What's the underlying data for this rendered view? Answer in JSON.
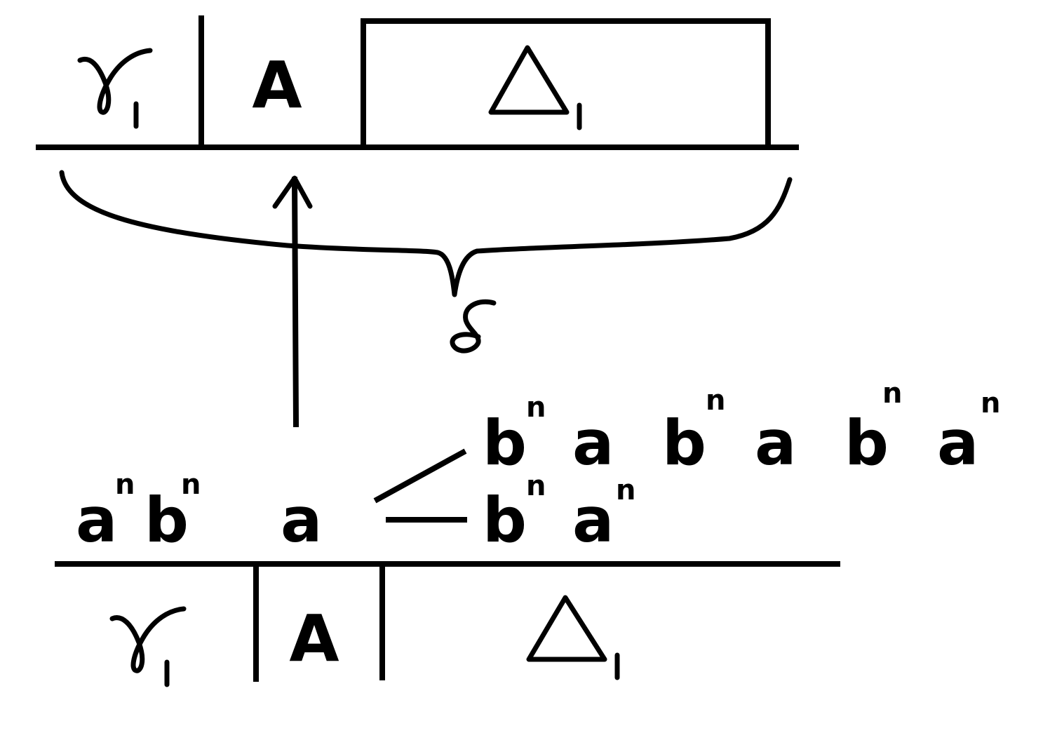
{
  "top_tree": {
    "gamma_symbol": "γ",
    "gamma_subscript": "1",
    "nonterminal": "A",
    "delta_symbol": "Δ",
    "delta_subscript": "1"
  },
  "brace_label": "δ",
  "bottom_tree": {
    "gamma_symbol": "γ",
    "gamma_subscript": "1",
    "nonterminal": "A",
    "delta_symbol": "Δ",
    "delta_subscript": "1"
  },
  "string_lower": {
    "t1": "a",
    "t1_exp": "n",
    "t2": "b",
    "t2_exp": "n",
    "t3": "a",
    "t4": "b",
    "t4_exp": "n",
    "t5": "a",
    "t5_exp": "n"
  },
  "string_upper": {
    "t1": "b",
    "t1_exp": "n",
    "t2": "a",
    "t3": "b",
    "t3_exp": "n",
    "t4": "a",
    "t5": "b",
    "t5_exp": "n",
    "t6": "a",
    "t6_exp": "n"
  }
}
